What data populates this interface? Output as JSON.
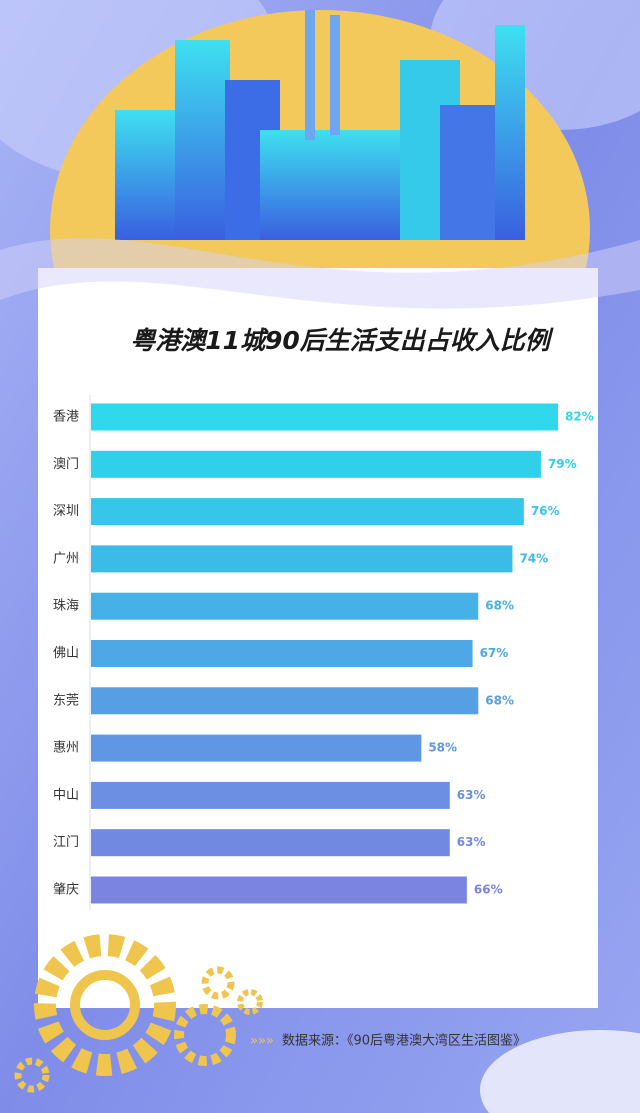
{
  "chart_data": {
    "type": "bar",
    "orientation": "horizontal",
    "title": "粤港澳11城90后生活支出占收入比例",
    "categories": [
      "香港",
      "澳门",
      "深圳",
      "广州",
      "珠海",
      "佛山",
      "东莞",
      "惠州",
      "中山",
      "江门",
      "肇庆"
    ],
    "values": [
      82,
      79,
      76,
      74,
      68,
      67,
      68,
      58,
      63,
      63,
      66
    ],
    "value_labels": [
      "82%",
      "79%",
      "76%",
      "74%",
      "68%",
      "67%",
      "68%",
      "58%",
      "63%",
      "63%",
      "66%"
    ],
    "colors": [
      "#2fd8ea",
      "#31d0ea",
      "#36c6e9",
      "#3bbce8",
      "#45b1e7",
      "#4ea8e6",
      "#569fe5",
      "#6097e4",
      "#6a8fe3",
      "#7289e2",
      "#7b84e0"
    ],
    "source": "数据来源：《90后粤港澳大湾区生活图鉴》"
  }
}
